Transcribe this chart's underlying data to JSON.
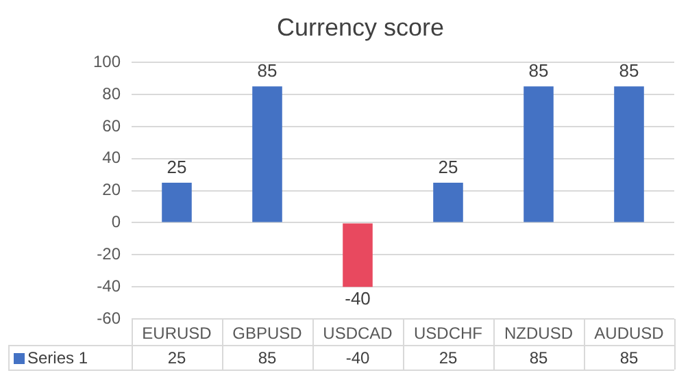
{
  "chart_data": {
    "type": "bar",
    "title": "Currency score",
    "categories": [
      "EURUSD",
      "GBPUSD",
      "USDCAD",
      "USDCHF",
      "NZDUSD",
      "AUDUSD"
    ],
    "series": [
      {
        "name": "Series 1",
        "colors": [
          "#4472c4",
          "#4472c4",
          "#e8495f",
          "#4472c4",
          "#4472c4",
          "#4472c4"
        ],
        "values": [
          25,
          85,
          -40,
          25,
          85,
          85
        ]
      }
    ],
    "annotations": [
      "25",
      "85",
      "-40",
      "25",
      "85",
      "85"
    ],
    "ylim": [
      -60,
      100
    ],
    "yticks": [
      -60,
      -40,
      -20,
      0,
      20,
      40,
      60,
      80,
      100
    ],
    "grid": "y",
    "data_labels": true,
    "legend": "bottom"
  }
}
